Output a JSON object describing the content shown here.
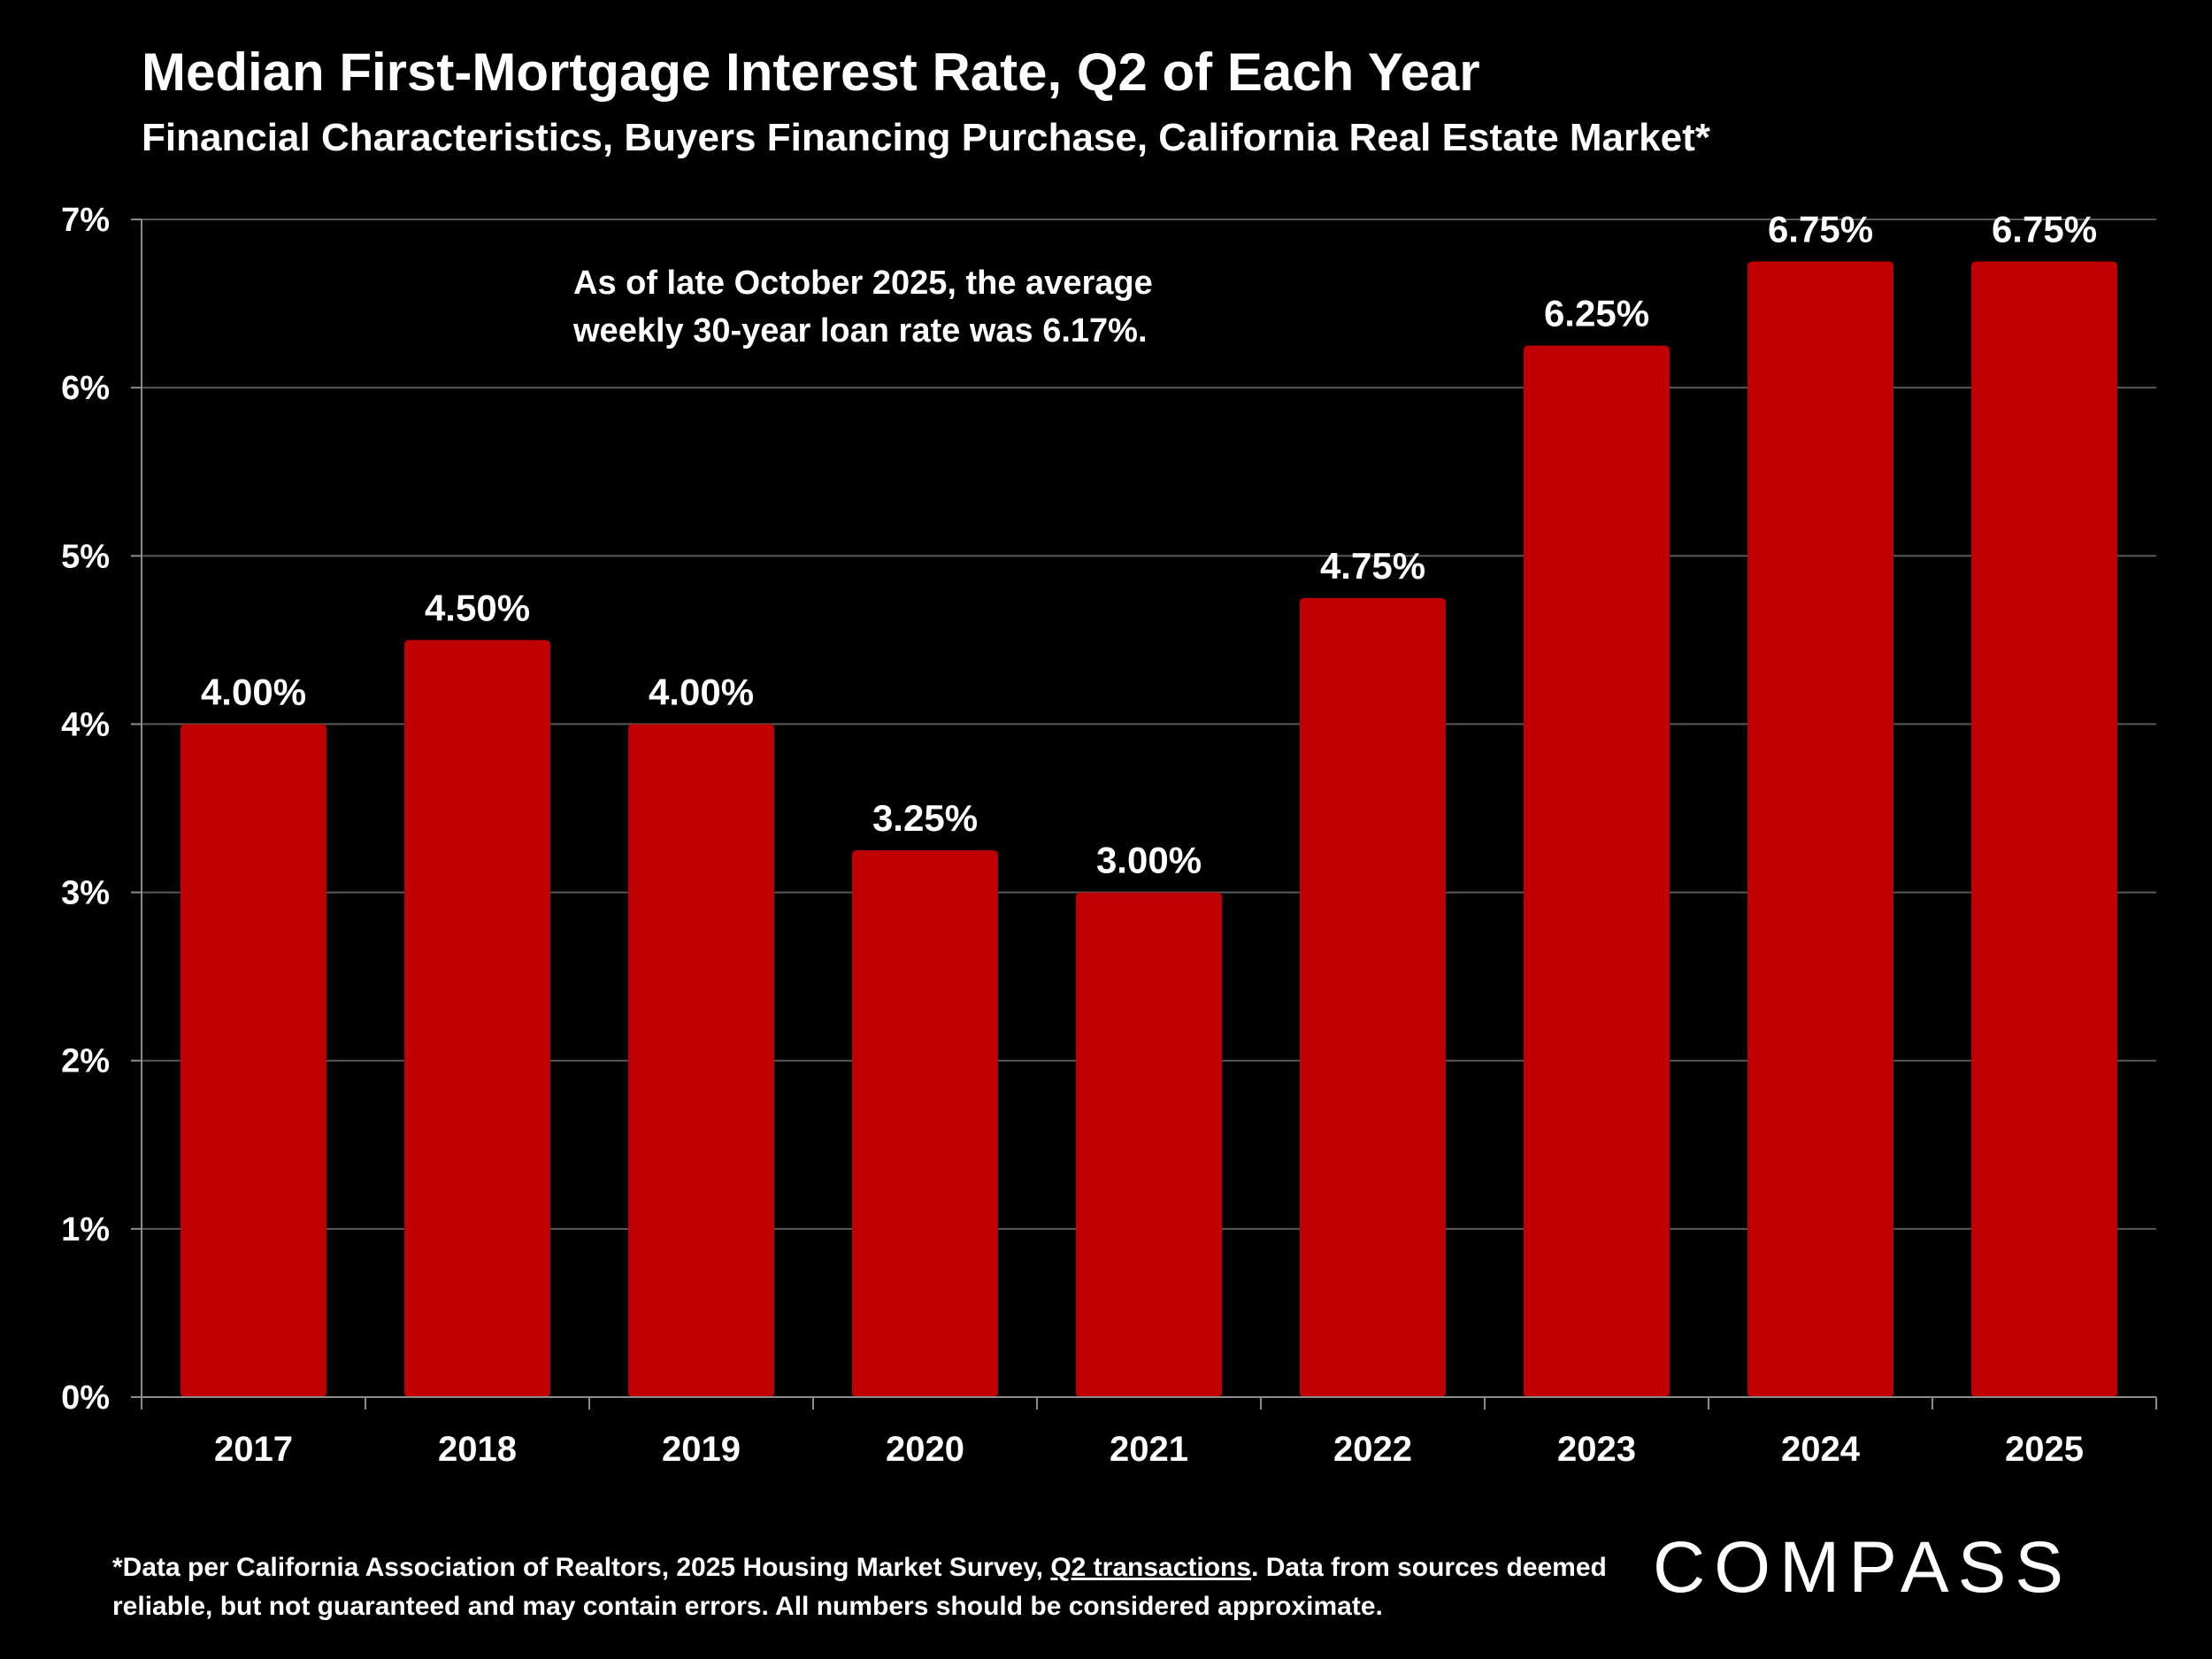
{
  "title": "Median First-Mortgage Interest Rate, Q2 of Each Year",
  "subtitle": "Financial Characteristics, Buyers Financing Purchase, California Real Estate Market*",
  "annotation": {
    "line1": "As of late October 2025, the average",
    "line2": "weekly 30-year loan rate was 6.17%."
  },
  "footnote": {
    "part1": "*Data per California Association of Realtors, 2025 Housing Market Survey, ",
    "link": "Q2 transactions",
    "part2": ". Data from sources deemed reliable, but not guaranteed and may contain errors. All numbers should be considered approximate."
  },
  "logo": {
    "text": "COMPASS"
  },
  "colors": {
    "background": "#000000",
    "bar": "#C00000",
    "text": "#FFFFFF",
    "gridline": "#595959",
    "axis": "#8C8C8C"
  },
  "chart_data": {
    "type": "bar",
    "categories": [
      "2017",
      "2018",
      "2019",
      "2020",
      "2021",
      "2022",
      "2023",
      "2024",
      "2025"
    ],
    "values": [
      4.0,
      4.5,
      4.0,
      3.25,
      3.0,
      4.75,
      6.25,
      6.75,
      6.75
    ],
    "data_labels": [
      "4.00%",
      "4.50%",
      "4.00%",
      "3.25%",
      "3.00%",
      "4.75%",
      "6.25%",
      "6.75%",
      "6.75%"
    ],
    "y_ticks": [
      0,
      1,
      2,
      3,
      4,
      5,
      6,
      7
    ],
    "y_tick_labels": [
      "0%",
      "1%",
      "2%",
      "3%",
      "4%",
      "5%",
      "6%",
      "7%"
    ],
    "ylim": [
      0,
      7
    ],
    "grid": true,
    "legend": "none"
  }
}
